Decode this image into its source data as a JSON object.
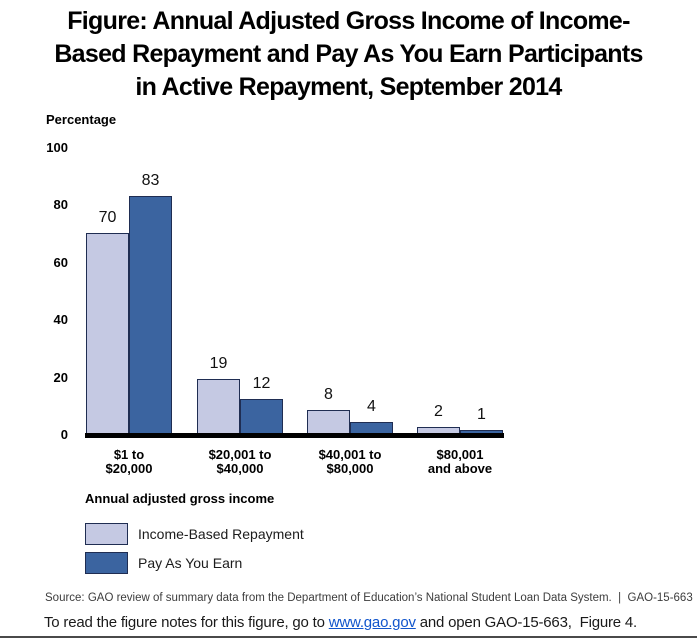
{
  "title": {
    "lines": [
      "Figure: Annual Adjusted Gross Income of Income-",
      "Based Repayment and Pay As You Earn Participants",
      "in Active Repayment, September 2014"
    ]
  },
  "chart_data": {
    "type": "bar",
    "title": "Figure: Annual Adjusted Gross Income of Income-Based Repayment and Pay As You Earn Participants in Active Repayment, September 2014",
    "ylabel": "Percentage",
    "xlabel": "Annual adjusted gross income",
    "ylim": [
      0,
      100
    ],
    "yticks": [
      0,
      20,
      40,
      60,
      80,
      100
    ],
    "grid": false,
    "legend_position": "bottom-left",
    "categories": [
      "$1 to $20,000",
      "$20,001 to $40,000",
      "$40,001 to $80,000",
      "$80,001 and above"
    ],
    "category_lines": [
      "$1 to\n$20,000",
      "$20,001 to\n$40,000",
      "$40,001 to\n$80,000",
      "$80,001\nand above"
    ],
    "series": [
      {
        "name": "Income-Based Repayment",
        "color": "#c5c9e3",
        "values": [
          70,
          19,
          8,
          2
        ]
      },
      {
        "name": "Pay As You Earn",
        "color": "#3b64a0",
        "values": [
          83,
          12,
          4,
          1
        ]
      }
    ],
    "bar_border_color": "#1f2d52",
    "axis_color": "#000000"
  },
  "source_line": "Source: GAO review of summary data from the Department of Education’s National Student Loan Data System.  |  GAO-15-663",
  "footer": {
    "pre_link": "To read the figure notes for this figure, go to ",
    "link": "www.gao.gov",
    "post_link": " and open GAO-15-663,  Figure 4.",
    "link_color": "#1155cc"
  }
}
